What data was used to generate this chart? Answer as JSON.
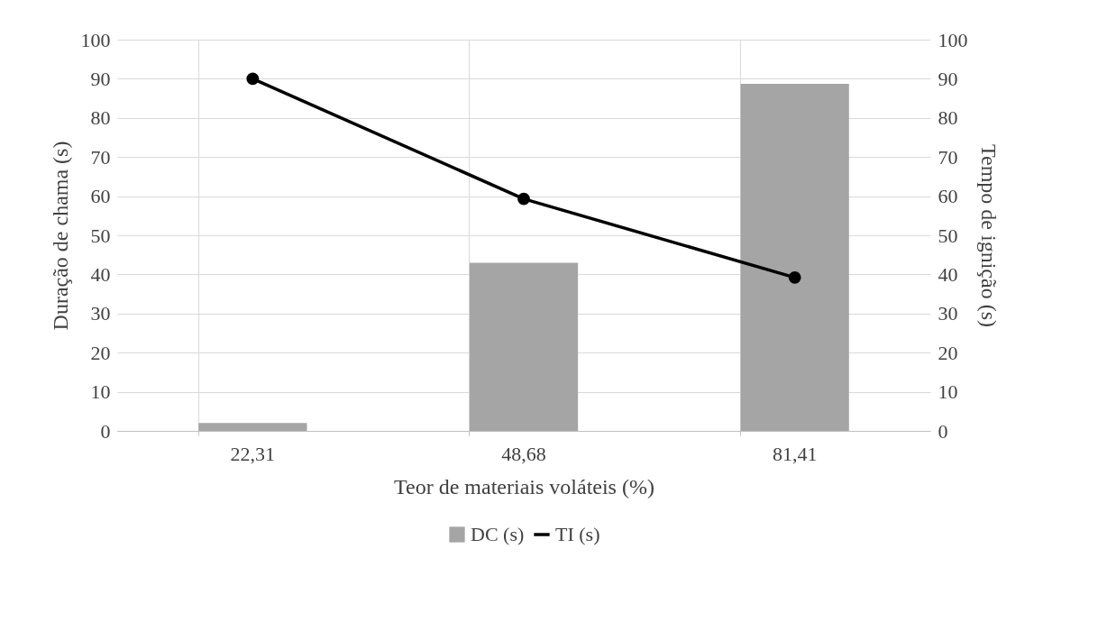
{
  "chart_data": {
    "type": "bar",
    "xlabel": "Teor de materiais voláteis (%)",
    "ylabel": "Duração de chama (s)",
    "y2label": "Tempo de ignição (s)",
    "categories": [
      "22,31",
      "48,68",
      "81,41"
    ],
    "series": [
      {
        "name": "DC (s)",
        "color": "#a5a5a5",
        "values": [
          2,
          43,
          88.7
        ]
      },
      {
        "name": "TI (s)",
        "type": "line",
        "axis": "y2",
        "color": "#000000",
        "values": [
          90,
          59.3,
          39.2
        ],
        "marker": "circle"
      }
    ],
    "ylim": [
      0,
      100
    ],
    "yticks": [
      0,
      10,
      20,
      30,
      40,
      50,
      60,
      70,
      80,
      90,
      100
    ],
    "y2lim": [
      0,
      100
    ],
    "y2ticks": [
      0,
      10,
      20,
      30,
      40,
      50,
      60,
      70,
      80,
      90,
      100
    ],
    "grid": true,
    "legend": "bottom"
  }
}
